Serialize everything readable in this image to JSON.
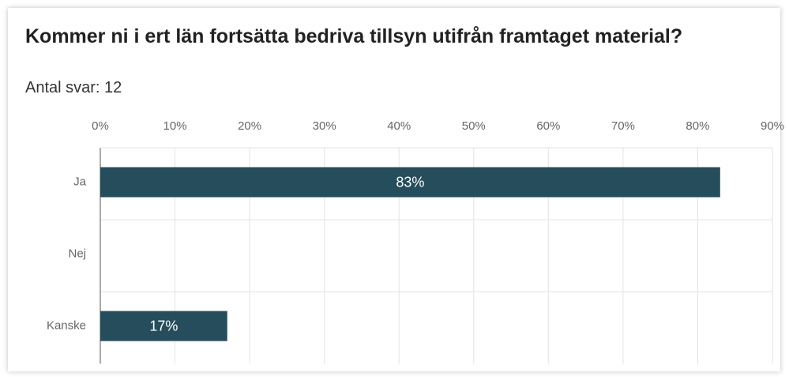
{
  "chart_data": {
    "type": "hbar",
    "title": "Kommer ni i ert län fortsätta bedriva tillsyn utifrån framtaget material?",
    "subtitle": "Antal svar: 12",
    "categories": [
      "Ja",
      "Nej",
      "Kanske"
    ],
    "values": [
      83,
      0,
      17
    ],
    "value_labels": [
      "83%",
      null,
      "17%"
    ],
    "color": "#264d5c",
    "xlim": [
      0,
      90
    ],
    "xticks": [
      {
        "value": 0,
        "label": "0%"
      },
      {
        "value": 10,
        "label": "10%"
      },
      {
        "value": 20,
        "label": "20%"
      },
      {
        "value": 30,
        "label": "30%"
      },
      {
        "value": 40,
        "label": "40%"
      },
      {
        "value": 50,
        "label": "50%"
      },
      {
        "value": 60,
        "label": "60%"
      },
      {
        "value": 70,
        "label": "70%"
      },
      {
        "value": 80,
        "label": "80%"
      },
      {
        "value": 90,
        "label": "90%"
      }
    ],
    "grid": true
  }
}
